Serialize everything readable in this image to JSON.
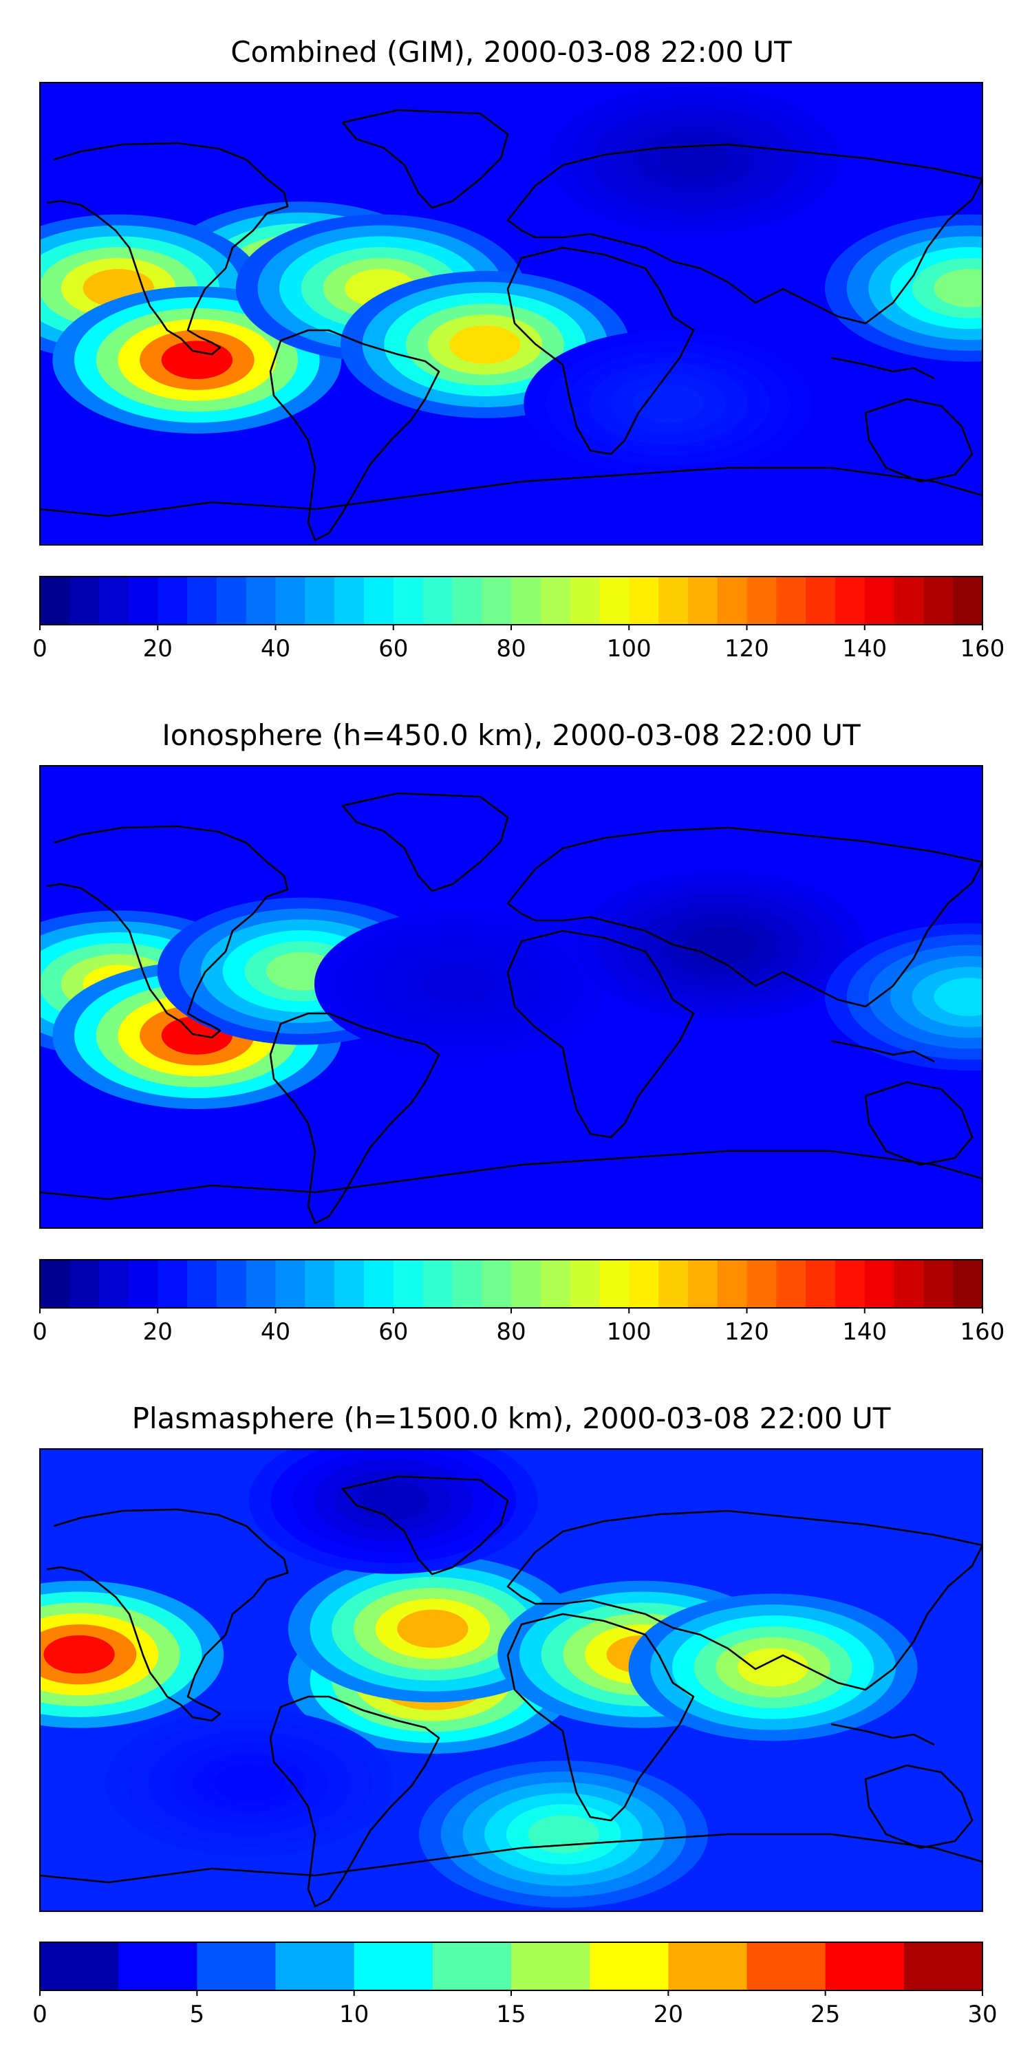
{
  "chart_data": [
    {
      "type": "heatmap",
      "title": "Combined (GIM), 2000-03-08 22:00 UT",
      "colormap": "jet",
      "colorbar": {
        "ticks": [
          "0",
          "20",
          "40",
          "60",
          "80",
          "100",
          "120",
          "140",
          "160"
        ],
        "range": [
          0,
          160
        ],
        "levels": 32
      },
      "features": [
        {
          "lon": -80,
          "lat": 15,
          "value": 115
        },
        {
          "lon": -150,
          "lat": 10,
          "value": 110
        },
        {
          "lon": -120,
          "lat": -18,
          "value": 140
        },
        {
          "lon": -50,
          "lat": 10,
          "value": 95
        },
        {
          "lon": -10,
          "lat": -12,
          "value": 105
        },
        {
          "lon": 175,
          "lat": 10,
          "value": 80
        },
        {
          "lon": 70,
          "lat": 60,
          "value": 10
        },
        {
          "lon": 60,
          "lat": -35,
          "value": 25
        }
      ]
    },
    {
      "type": "heatmap",
      "title": "Ionosphere  (h=450.0 km), 2000-03-08 22:00 UT",
      "colormap": "jet",
      "colorbar": {
        "ticks": [
          "0",
          "20",
          "40",
          "60",
          "80",
          "100",
          "120",
          "140",
          "160"
        ],
        "range": [
          0,
          160
        ],
        "levels": 32
      },
      "features": [
        {
          "lon": -150,
          "lat": 5,
          "value": 100
        },
        {
          "lon": -120,
          "lat": -15,
          "value": 140
        },
        {
          "lon": -80,
          "lat": 10,
          "value": 80
        },
        {
          "lon": -20,
          "lat": 5,
          "value": 15
        },
        {
          "lon": 80,
          "lat": 20,
          "value": 8
        },
        {
          "lon": 175,
          "lat": 0,
          "value": 55
        }
      ]
    },
    {
      "type": "heatmap",
      "title": "Plasmasphere (h=1500.0 km), 2000-03-08 22:00 UT",
      "colormap": "jet",
      "colorbar": {
        "ticks": [
          "0",
          "5",
          "10",
          "15",
          "20",
          "25",
          "30"
        ],
        "range": [
          0,
          30
        ],
        "levels": 12
      },
      "features": [
        {
          "lon": -165,
          "lat": 10,
          "value": 26
        },
        {
          "lon": -30,
          "lat": 0,
          "value": 24
        },
        {
          "lon": -30,
          "lat": 20,
          "value": 21
        },
        {
          "lon": 50,
          "lat": 10,
          "value": 21
        },
        {
          "lon": 100,
          "lat": 5,
          "value": 18
        },
        {
          "lon": -45,
          "lat": 70,
          "value": 2
        },
        {
          "lon": -100,
          "lat": -40,
          "value": 4
        },
        {
          "lon": 20,
          "lat": -60,
          "value": 13
        }
      ]
    }
  ]
}
